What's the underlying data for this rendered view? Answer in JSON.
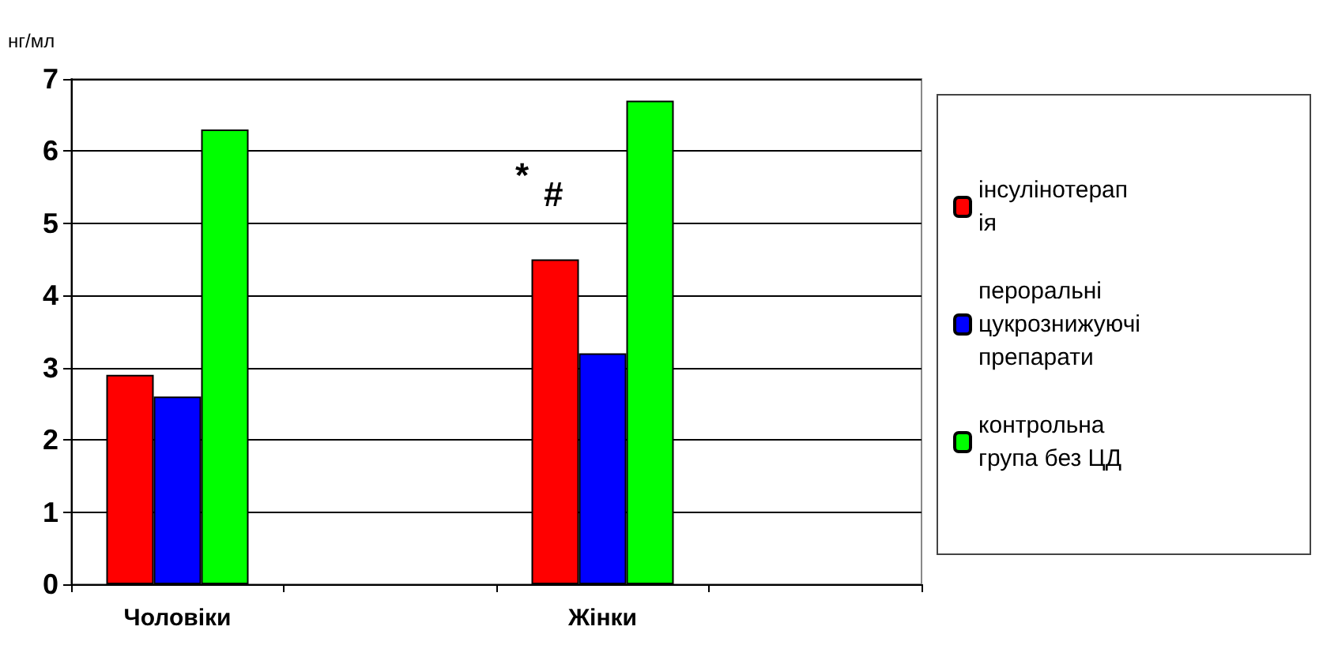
{
  "chart_data": {
    "type": "bar",
    "ylabel": "нг/мл",
    "categories": [
      "Чоловіки",
      null,
      "Жінки",
      null
    ],
    "series": [
      {
        "name": "інсулінотерапія",
        "color": "#ff0000",
        "values": [
          2.9,
          null,
          4.5,
          null
        ]
      },
      {
        "name": "пероральні цукрознижуючі препарати",
        "color": "#0000ff",
        "values": [
          2.6,
          null,
          3.2,
          null
        ]
      },
      {
        "name": "контрольна група без ЦД",
        "color": "#00ff00",
        "values": [
          6.3,
          null,
          6.7,
          null
        ]
      }
    ],
    "ylim": [
      0,
      7
    ],
    "yticks": [
      0,
      1,
      2,
      3,
      4,
      5,
      6,
      7
    ],
    "grid": "y",
    "legend": "right",
    "annotations": [
      "*",
      "#"
    ]
  }
}
